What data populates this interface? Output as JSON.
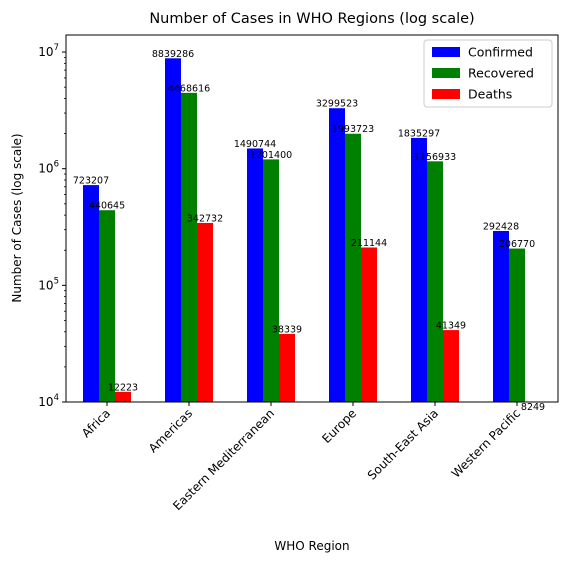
{
  "chart_data": {
    "type": "bar",
    "title": "Number of Cases in WHO Regions (log scale)",
    "xlabel": "WHO Region",
    "ylabel": "Number of Cases (log scale)",
    "yscale": "log",
    "ylim": [
      10000,
      14000000
    ],
    "yticks": [
      {
        "value": 10000,
        "base": "10",
        "exp": "4"
      },
      {
        "value": 100000,
        "base": "10",
        "exp": "5"
      },
      {
        "value": 1000000,
        "base": "10",
        "exp": "6"
      },
      {
        "value": 10000000,
        "base": "10",
        "exp": "7"
      }
    ],
    "categories": [
      "Africa",
      "Americas",
      "Eastern Mediterranean",
      "Europe",
      "South-East Asia",
      "Western Pacific"
    ],
    "series": [
      {
        "name": "Confirmed",
        "color": "#0000ff",
        "values": [
          723207,
          8839286,
          1490744,
          3299523,
          1835297,
          292428
        ]
      },
      {
        "name": "Recovered",
        "color": "#008000",
        "values": [
          440645,
          4468616,
          1201400,
          1993723,
          1156933,
          206770
        ]
      },
      {
        "name": "Deaths",
        "color": "#ff0000",
        "values": [
          12223,
          342732,
          38339,
          211144,
          41349,
          8249
        ]
      }
    ],
    "legend": {
      "position": "top-right"
    },
    "grid": false
  }
}
